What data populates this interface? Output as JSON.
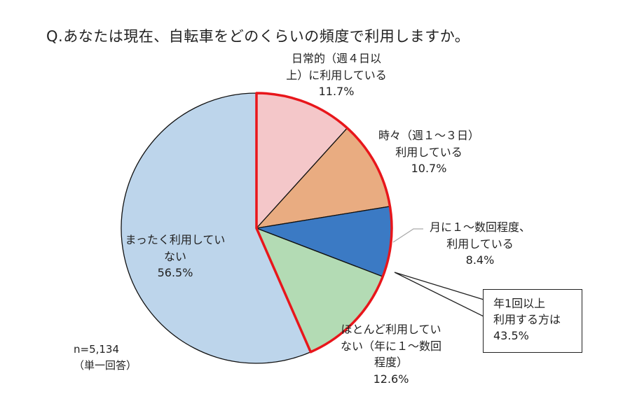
{
  "chart_data": {
    "type": "pie",
    "title": "Q.あなたは現在、自転車をどのくらいの頻度で利用しますか。",
    "start_angle": "12 o'clock",
    "direction": "clockwise",
    "slices": [
      {
        "label_lines": [
          "日常的（週４日以",
          "上）に利用している"
        ],
        "value": 11.7,
        "value_label": "11.7%",
        "color": "#F4C7C9"
      },
      {
        "label_lines": [
          "時々（週１～３日）",
          "利用している"
        ],
        "value": 10.7,
        "value_label": "10.7%",
        "color": "#E9AC81"
      },
      {
        "label_lines": [
          "月に１～数回程度、",
          "利用している"
        ],
        "value": 8.4,
        "value_label": "8.4%",
        "color": "#3B7AC4"
      },
      {
        "label_lines": [
          "ほとんど利用してい",
          "ない（年に１～数回",
          "程度）"
        ],
        "value": 12.6,
        "value_label": "12.6%",
        "color": "#B3DBB4"
      },
      {
        "label_lines": [
          "まったく利用してい",
          "ない"
        ],
        "value": 56.5,
        "value_label": "56.5%",
        "color": "#BDD5EB"
      }
    ],
    "highlight": {
      "slices": [
        0,
        1,
        2,
        3
      ],
      "outline_color": "#E8161B",
      "callout_lines": [
        "年1回以上",
        "利用する方は",
        "43.5%"
      ]
    },
    "note_lines": [
      "n=5,134",
      "（単一回答）"
    ]
  }
}
